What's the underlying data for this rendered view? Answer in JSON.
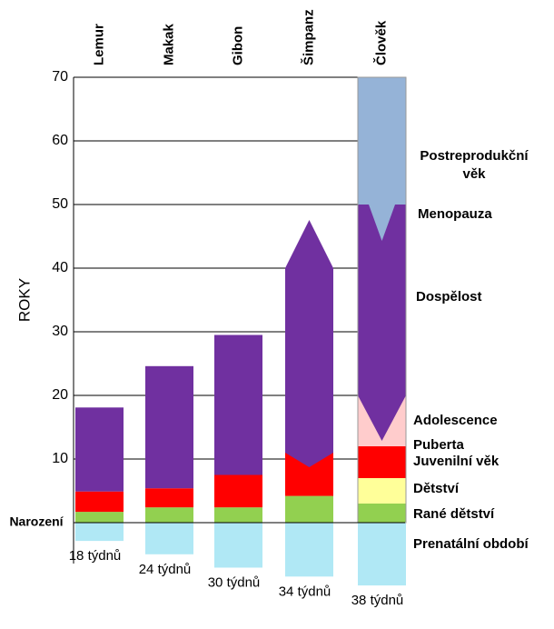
{
  "chart_data": {
    "type": "stacked-bar",
    "y_label": "ROKY",
    "categories": [
      "Lemur",
      "Makak",
      "Gibon",
      "Šimpanz",
      "Člověk"
    ],
    "ylim": [
      0,
      70
    ],
    "yticks": [
      {
        "value": 0,
        "label": "Narození"
      },
      10,
      20,
      30,
      40,
      50,
      60,
      70
    ],
    "grid": true,
    "series": [
      {
        "name": "Rané dětství",
        "color": "#92d050",
        "values": [
          1.7,
          2.4,
          2.4,
          4.2,
          3
        ]
      },
      {
        "name": "Dětství",
        "color": "#ffff99",
        "values": [
          null,
          null,
          null,
          null,
          4
        ]
      },
      {
        "name": "Juvenilní věk",
        "color": "#ff0000",
        "values": [
          3.2,
          3,
          5.1,
          6.8,
          5
        ]
      },
      {
        "name": "Adolescence",
        "color": "#ffcccc",
        "values": [
          null,
          null,
          null,
          null,
          8
        ]
      },
      {
        "name": "Dospělost",
        "color": "#7030a0",
        "values": [
          13.2,
          19.2,
          22,
          29,
          30
        ]
      },
      {
        "name": "Postreprodukční věk",
        "color": "#95b3d7",
        "values": [
          null,
          null,
          null,
          null,
          20
        ]
      }
    ],
    "prenatal": {
      "name": "Prenatální období",
      "color": "#b0e8f5",
      "values": [
        18,
        24,
        30,
        34,
        38
      ],
      "value_labels": [
        "18 týdnů",
        "24 týdnů",
        "30 týdnů",
        "34 týdnů",
        "38 týdnů"
      ]
    },
    "annotations": [
      "Menopauza",
      "Puberta"
    ]
  }
}
